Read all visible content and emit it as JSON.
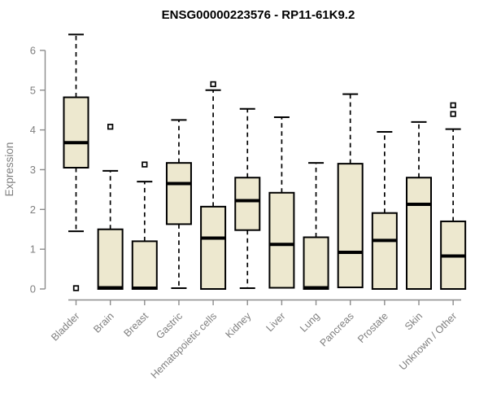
{
  "chart_data": {
    "type": "boxplot",
    "title": "ENSG00000223576 - RP11-61K9.2",
    "ylabel": "Expression",
    "xlabel": "",
    "ylim": [
      0,
      6.4
    ],
    "yticks": [
      0,
      1,
      2,
      3,
      4,
      5,
      6
    ],
    "grid": false,
    "legend": "none",
    "categories": [
      "Bladder",
      "Brain",
      "Breast",
      "Gastric",
      "Hematopoietic cells",
      "Kidney",
      "Liver",
      "Lung",
      "Pancreas",
      "Prostate",
      "Skin",
      "Unknown / Other"
    ],
    "boxes": [
      {
        "category": "Bladder",
        "whisker_low": 1.45,
        "q1": 3.05,
        "median": 3.68,
        "q3": 4.82,
        "whisker_high": 6.4,
        "outliers": [
          0.02
        ]
      },
      {
        "category": "Brain",
        "whisker_low": 0.0,
        "q1": 0.0,
        "median": 0.03,
        "q3": 1.5,
        "whisker_high": 2.97,
        "outliers": [
          4.08
        ]
      },
      {
        "category": "Breast",
        "whisker_low": 0.0,
        "q1": 0.0,
        "median": 0.02,
        "q3": 1.2,
        "whisker_high": 2.7,
        "outliers": [
          3.13
        ]
      },
      {
        "category": "Gastric",
        "whisker_low": 0.02,
        "q1": 1.63,
        "median": 2.65,
        "q3": 3.17,
        "whisker_high": 4.25,
        "outliers": []
      },
      {
        "category": "Hematopoietic cells",
        "whisker_low": 0.0,
        "q1": 0.0,
        "median": 1.28,
        "q3": 2.07,
        "whisker_high": 5.0,
        "outliers": [
          5.15
        ]
      },
      {
        "category": "Kidney",
        "whisker_low": 0.02,
        "q1": 1.48,
        "median": 2.22,
        "q3": 2.8,
        "whisker_high": 4.53,
        "outliers": []
      },
      {
        "category": "Liver",
        "whisker_low": 0.03,
        "q1": 0.03,
        "median": 1.12,
        "q3": 2.42,
        "whisker_high": 4.32,
        "outliers": []
      },
      {
        "category": "Lung",
        "whisker_low": 0.0,
        "q1": 0.0,
        "median": 0.03,
        "q3": 1.3,
        "whisker_high": 3.17,
        "outliers": []
      },
      {
        "category": "Pancreas",
        "whisker_low": 0.04,
        "q1": 0.04,
        "median": 0.92,
        "q3": 3.15,
        "whisker_high": 4.9,
        "outliers": []
      },
      {
        "category": "Prostate",
        "whisker_low": 0.0,
        "q1": 0.0,
        "median": 1.22,
        "q3": 1.91,
        "whisker_high": 3.95,
        "outliers": []
      },
      {
        "category": "Skin",
        "whisker_low": 0.0,
        "q1": 0.0,
        "median": 2.13,
        "q3": 2.8,
        "whisker_high": 4.2,
        "outliers": []
      },
      {
        "category": "Unknown / Other",
        "whisker_low": 0.0,
        "q1": 0.0,
        "median": 0.83,
        "q3": 1.7,
        "whisker_high": 4.02,
        "outliers": [
          4.4,
          4.62
        ]
      }
    ],
    "colors": {
      "box_fill": "#ede8cf",
      "box_border": "#000000",
      "median": "#000000",
      "whisker": "#000000",
      "outlier": "#000000",
      "axis_line": "#8c8c8c",
      "tick_label": "#7f7f7f",
      "title": "#000000",
      "background": "#ffffff"
    }
  }
}
